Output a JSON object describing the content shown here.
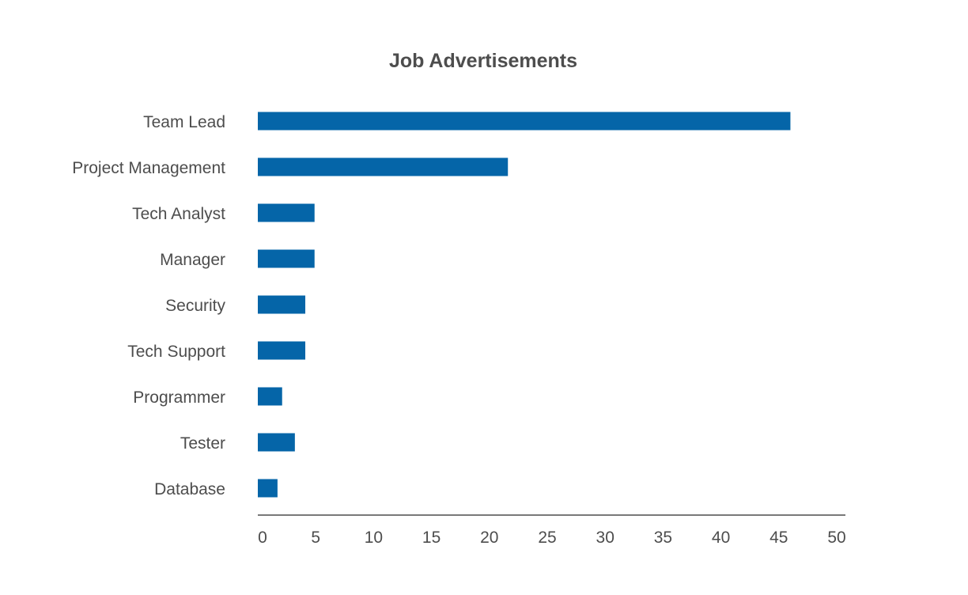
{
  "chart_data": {
    "type": "bar",
    "orientation": "horizontal",
    "title": "Job Advertisements",
    "xlabel": "",
    "ylabel": "",
    "categories": [
      "Team Lead",
      "Project Management",
      "Tech Analyst",
      "Manager",
      "Security",
      "Tech Support",
      "Programmer",
      "Tester",
      "Database"
    ],
    "values": [
      46,
      21.6,
      4.9,
      4.9,
      4.1,
      4.1,
      2.1,
      3.2,
      1.7
    ],
    "xlim": [
      0,
      50
    ],
    "xticks": [
      "0",
      "5",
      "10",
      "15",
      "20",
      "25",
      "30",
      "35",
      "40",
      "45",
      "50"
    ],
    "grid": false,
    "legend": "none",
    "bar_color": "#0565a8",
    "text_color": "#4d4d4d",
    "axis_color": "#4d4d4d"
  }
}
